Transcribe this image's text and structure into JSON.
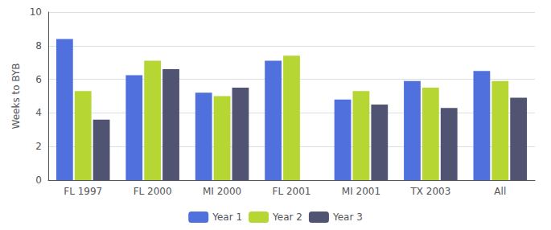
{
  "chart_data": {
    "type": "bar",
    "categories": [
      "FL 1997",
      "FL 2000",
      "MI 2000",
      "FL 2001",
      "MI 2001",
      "TX 2003",
      "All"
    ],
    "series": [
      {
        "name": "Year 1",
        "values": [
          8.4,
          6.25,
          5.2,
          7.1,
          4.8,
          5.9,
          6.5
        ]
      },
      {
        "name": "Year 2",
        "values": [
          5.3,
          7.1,
          5.0,
          7.4,
          5.3,
          5.5,
          5.9
        ]
      },
      {
        "name": "Year 3",
        "values": [
          3.6,
          6.6,
          5.5,
          null,
          4.5,
          4.3,
          4.9
        ]
      }
    ],
    "ylabel": "Weeks to BYB",
    "ylim": [
      0,
      10
    ],
    "yticks": [
      0,
      2,
      4,
      6,
      8,
      10
    ],
    "grid": true,
    "legend": "bottom"
  }
}
